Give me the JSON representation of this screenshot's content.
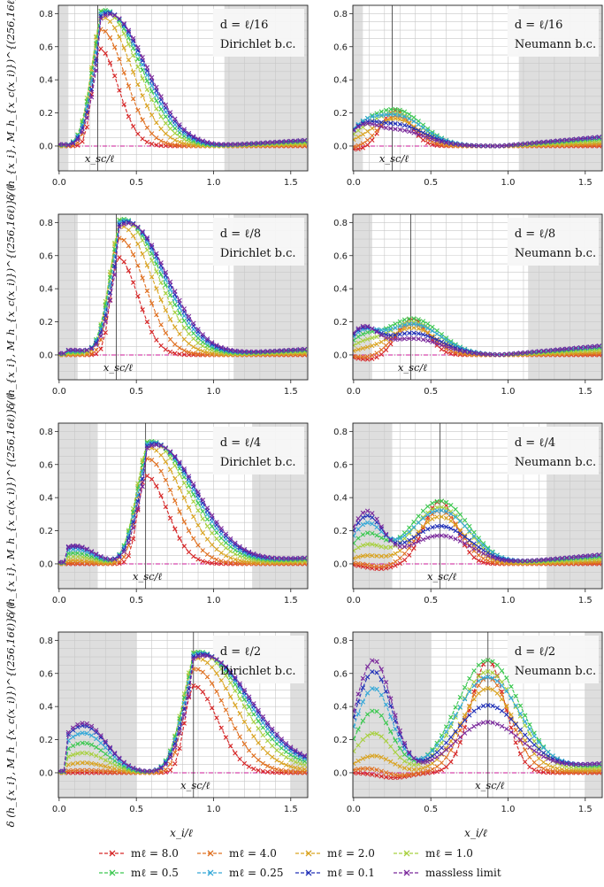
{
  "figure": {
    "ylabel": "δ (h_{x_i}, M_h_{x_c(x_i)})^{(256,16ℓ)} / ℓ",
    "xlabel": "x_i/ℓ",
    "xsc_label": "x_sc/ℓ",
    "x_ticks": [
      "0.0",
      "0.5",
      "1.0",
      "1.5"
    ],
    "y_ticks": [
      "0.0",
      "0.2",
      "0.4",
      "0.6",
      "0.8"
    ]
  },
  "legend": [
    {
      "label": "mℓ = 8.0",
      "color": "#d62728"
    },
    {
      "label": "mℓ = 4.0",
      "color": "#e07020"
    },
    {
      "label": "mℓ = 2.0",
      "color": "#d9a320"
    },
    {
      "label": "mℓ = 1.0",
      "color": "#a8d040"
    },
    {
      "label": "mℓ = 0.5",
      "color": "#3cc850"
    },
    {
      "label": "mℓ = 0.25",
      "color": "#34a8d8"
    },
    {
      "label": "mℓ = 0.1",
      "color": "#2030b8"
    },
    {
      "label": "massless limit",
      "color": "#7b2a9c"
    }
  ],
  "chart_data": [
    {
      "type": "line",
      "d_label": "d = ℓ/16",
      "d_frac": "ℓ/16",
      "bc": "Dirichlet b.c.",
      "xsc": 0.25,
      "shade": [
        [
          -0.05,
          0.06
        ],
        [
          1.07,
          1.65
        ]
      ],
      "xlim": [
        0,
        1.6
      ],
      "ylim": [
        -0.15,
        0.85
      ],
      "peak": 0.82,
      "peak_x": 0.26,
      "left_bump": 0.0,
      "neumann": false
    },
    {
      "type": "line",
      "d_label": "d = ℓ/16",
      "d_frac": "ℓ/16",
      "bc": "Neumann b.c.",
      "xsc": 0.25,
      "shade": [
        [
          -0.05,
          0.06
        ],
        [
          1.07,
          1.65
        ]
      ],
      "xlim": [
        0,
        1.6
      ],
      "ylim": [
        -0.15,
        0.85
      ],
      "peak": 0.22,
      "peak_x": 0.27,
      "left_bump": 0.08,
      "neumann": true
    },
    {
      "type": "line",
      "d_label": "d = ℓ/8",
      "d_frac": "ℓ/8",
      "bc": "Dirichlet b.c.",
      "xsc": 0.37,
      "shade": [
        [
          -0.05,
          0.12
        ],
        [
          1.13,
          1.65
        ]
      ],
      "xlim": [
        0,
        1.6
      ],
      "ylim": [
        -0.15,
        0.85
      ],
      "peak": 0.82,
      "peak_x": 0.38,
      "left_bump": 0.03,
      "neumann": false
    },
    {
      "type": "line",
      "d_label": "d = ℓ/8",
      "d_frac": "ℓ/8",
      "bc": "Neumann b.c.",
      "xsc": 0.37,
      "shade": [
        [
          -0.05,
          0.12
        ],
        [
          1.13,
          1.65
        ]
      ],
      "xlim": [
        0,
        1.6
      ],
      "ylim": [
        -0.15,
        0.85
      ],
      "peak": 0.22,
      "peak_x": 0.38,
      "left_bump": 0.15,
      "neumann": true
    },
    {
      "type": "line",
      "d_label": "d = ℓ/4",
      "d_frac": "ℓ/4",
      "bc": "Dirichlet b.c.",
      "xsc": 0.56,
      "shade": [
        [
          -0.05,
          0.25
        ],
        [
          1.25,
          1.65
        ]
      ],
      "xlim": [
        0,
        1.6
      ],
      "ylim": [
        -0.15,
        0.85
      ],
      "peak": 0.74,
      "peak_x": 0.56,
      "left_bump": 0.11,
      "neumann": false
    },
    {
      "type": "line",
      "d_label": "d = ℓ/4",
      "d_frac": "ℓ/4",
      "bc": "Neumann b.c.",
      "xsc": 0.56,
      "shade": [
        [
          -0.05,
          0.25
        ],
        [
          1.25,
          1.65
        ]
      ],
      "xlim": [
        0,
        1.6
      ],
      "ylim": [
        -0.15,
        0.85
      ],
      "peak": 0.38,
      "peak_x": 0.56,
      "left_bump": 0.31,
      "neumann": true
    },
    {
      "type": "line",
      "d_label": "d = ℓ/2",
      "d_frac": "ℓ/2",
      "bc": "Dirichlet b.c.",
      "xsc": 0.87,
      "shade": [
        [
          -0.05,
          0.5
        ],
        [
          1.5,
          1.65
        ]
      ],
      "xlim": [
        0,
        1.6
      ],
      "ylim": [
        -0.15,
        0.85
      ],
      "peak": 0.73,
      "peak_x": 0.87,
      "left_bump": 0.3,
      "neumann": false
    },
    {
      "type": "line",
      "d_label": "d = ℓ/2",
      "d_frac": "ℓ/2",
      "bc": "Neumann b.c.",
      "xsc": 0.87,
      "shade": [
        [
          -0.05,
          0.5
        ],
        [
          1.5,
          1.65
        ]
      ],
      "xlim": [
        0,
        1.6
      ],
      "ylim": [
        -0.15,
        0.85
      ],
      "peak": 0.68,
      "peak_x": 0.87,
      "left_bump": 0.68,
      "neumann": true
    }
  ]
}
